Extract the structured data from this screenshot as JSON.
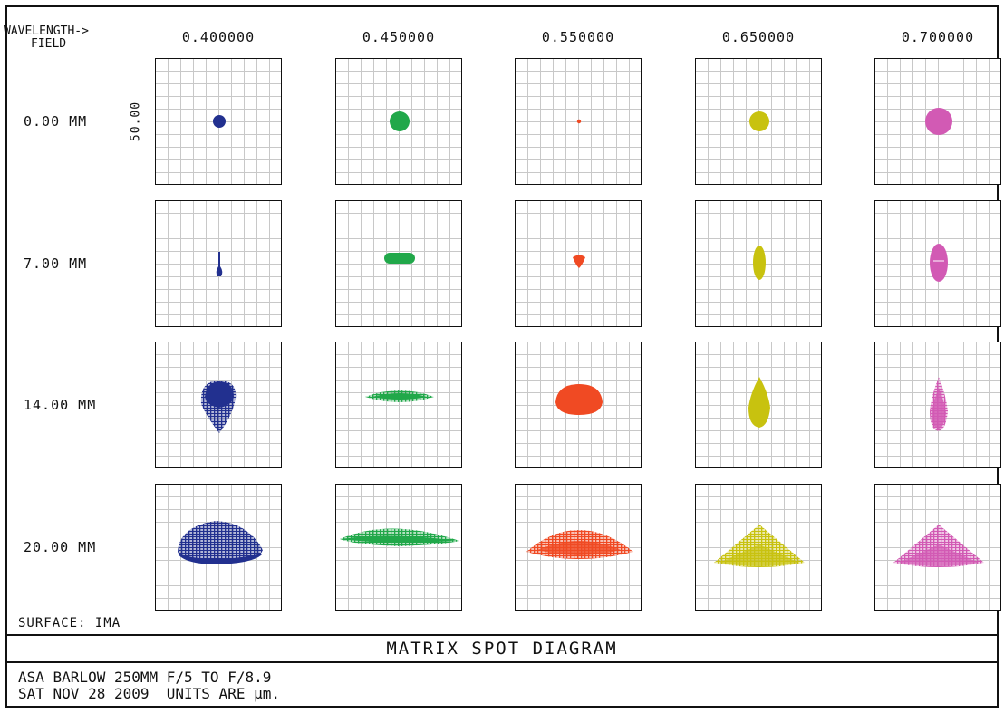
{
  "header": {
    "wavelength_label": "WAVELENGTH->",
    "field_label": "FIELD"
  },
  "wavelengths": [
    "0.400000",
    "0.450000",
    "0.550000",
    "0.650000",
    "0.700000"
  ],
  "fields": [
    "0.00 MM",
    "7.00 MM",
    "14.00 MM",
    "20.00 MM"
  ],
  "scale_label": "50.00",
  "surface_label": "SURFACE: IMA",
  "diagram_title": "MATRIX SPOT DIAGRAM",
  "info": {
    "line1": "ASA BARLOW 250MM F/5 TO F/8.9",
    "line2": "SAT NOV 28 2009  UNITS ARE µm."
  },
  "colors": {
    "0.400000": "#22308f",
    "0.450000": "#21a84a",
    "0.550000": "#f04a23",
    "0.650000": "#c8c20f",
    "0.700000": "#d25ab4"
  },
  "spots": [
    [
      "dot-small",
      "dot-medium",
      "dot-tiny",
      "dot-medium",
      "dot-large"
    ],
    [
      "comet-thin",
      "bar-horizontal",
      "drop-small",
      "ellipse-vertical",
      "ellipse-vertical-large"
    ],
    [
      "pear-large",
      "lens-wide-flat",
      "ellipse-wide",
      "pear-vertical",
      "pear-vertical-thin"
    ],
    [
      "arc-wide-dense",
      "arc-very-wide",
      "arc-wide-low",
      "tent-wide",
      "tent-wide"
    ]
  ]
}
